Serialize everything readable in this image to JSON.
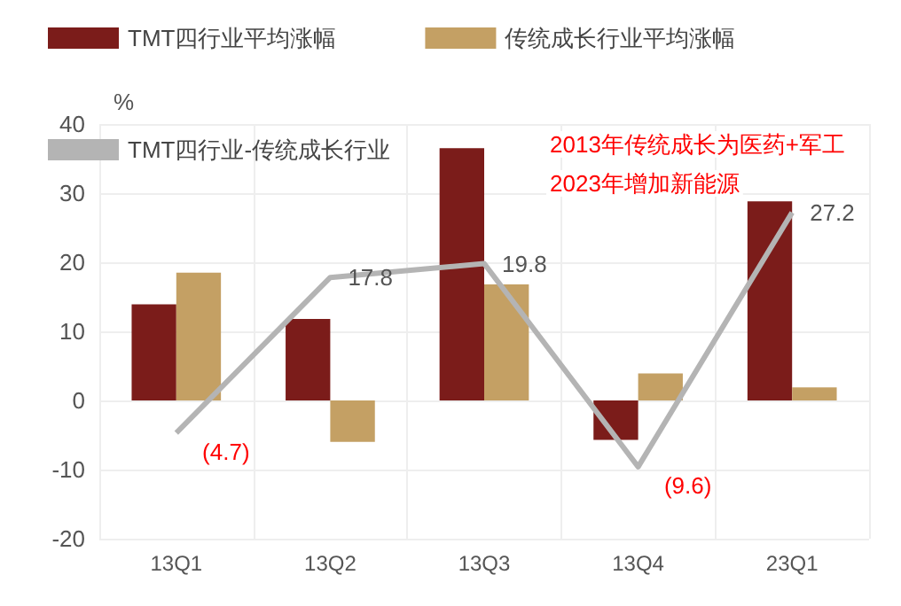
{
  "chart_data": {
    "type": "bar",
    "ylabel": "%",
    "categories": [
      "13Q1",
      "13Q2",
      "13Q3",
      "13Q4",
      "23Q1"
    ],
    "series": [
      {
        "name": "TMT四行业平均涨幅",
        "color": "#7b1c1a",
        "values": [
          13.9,
          11.8,
          36.5,
          -5.7,
          28.8
        ]
      },
      {
        "name": "传统成长行业平均涨幅",
        "color": "#c4a064",
        "values": [
          18.5,
          -6.0,
          16.8,
          3.9,
          1.9
        ]
      },
      {
        "name": "TMT四行业-传统成长行业",
        "type": "line",
        "color": "#b4b4b4",
        "values": [
          -4.7,
          17.8,
          19.8,
          -9.6,
          27.2
        ],
        "value_labels": [
          "(4.7)",
          "17.8",
          "19.8",
          "(9.6)",
          "27.2"
        ]
      }
    ],
    "ylim": [
      -20,
      40
    ],
    "yticks": [
      -20,
      -10,
      0,
      10,
      20,
      30,
      40
    ],
    "grid": true,
    "legend": "top",
    "marker": "none",
    "annotations": [
      "2013年传统成长为医药+军工",
      "2023年增加新能源"
    ]
  }
}
